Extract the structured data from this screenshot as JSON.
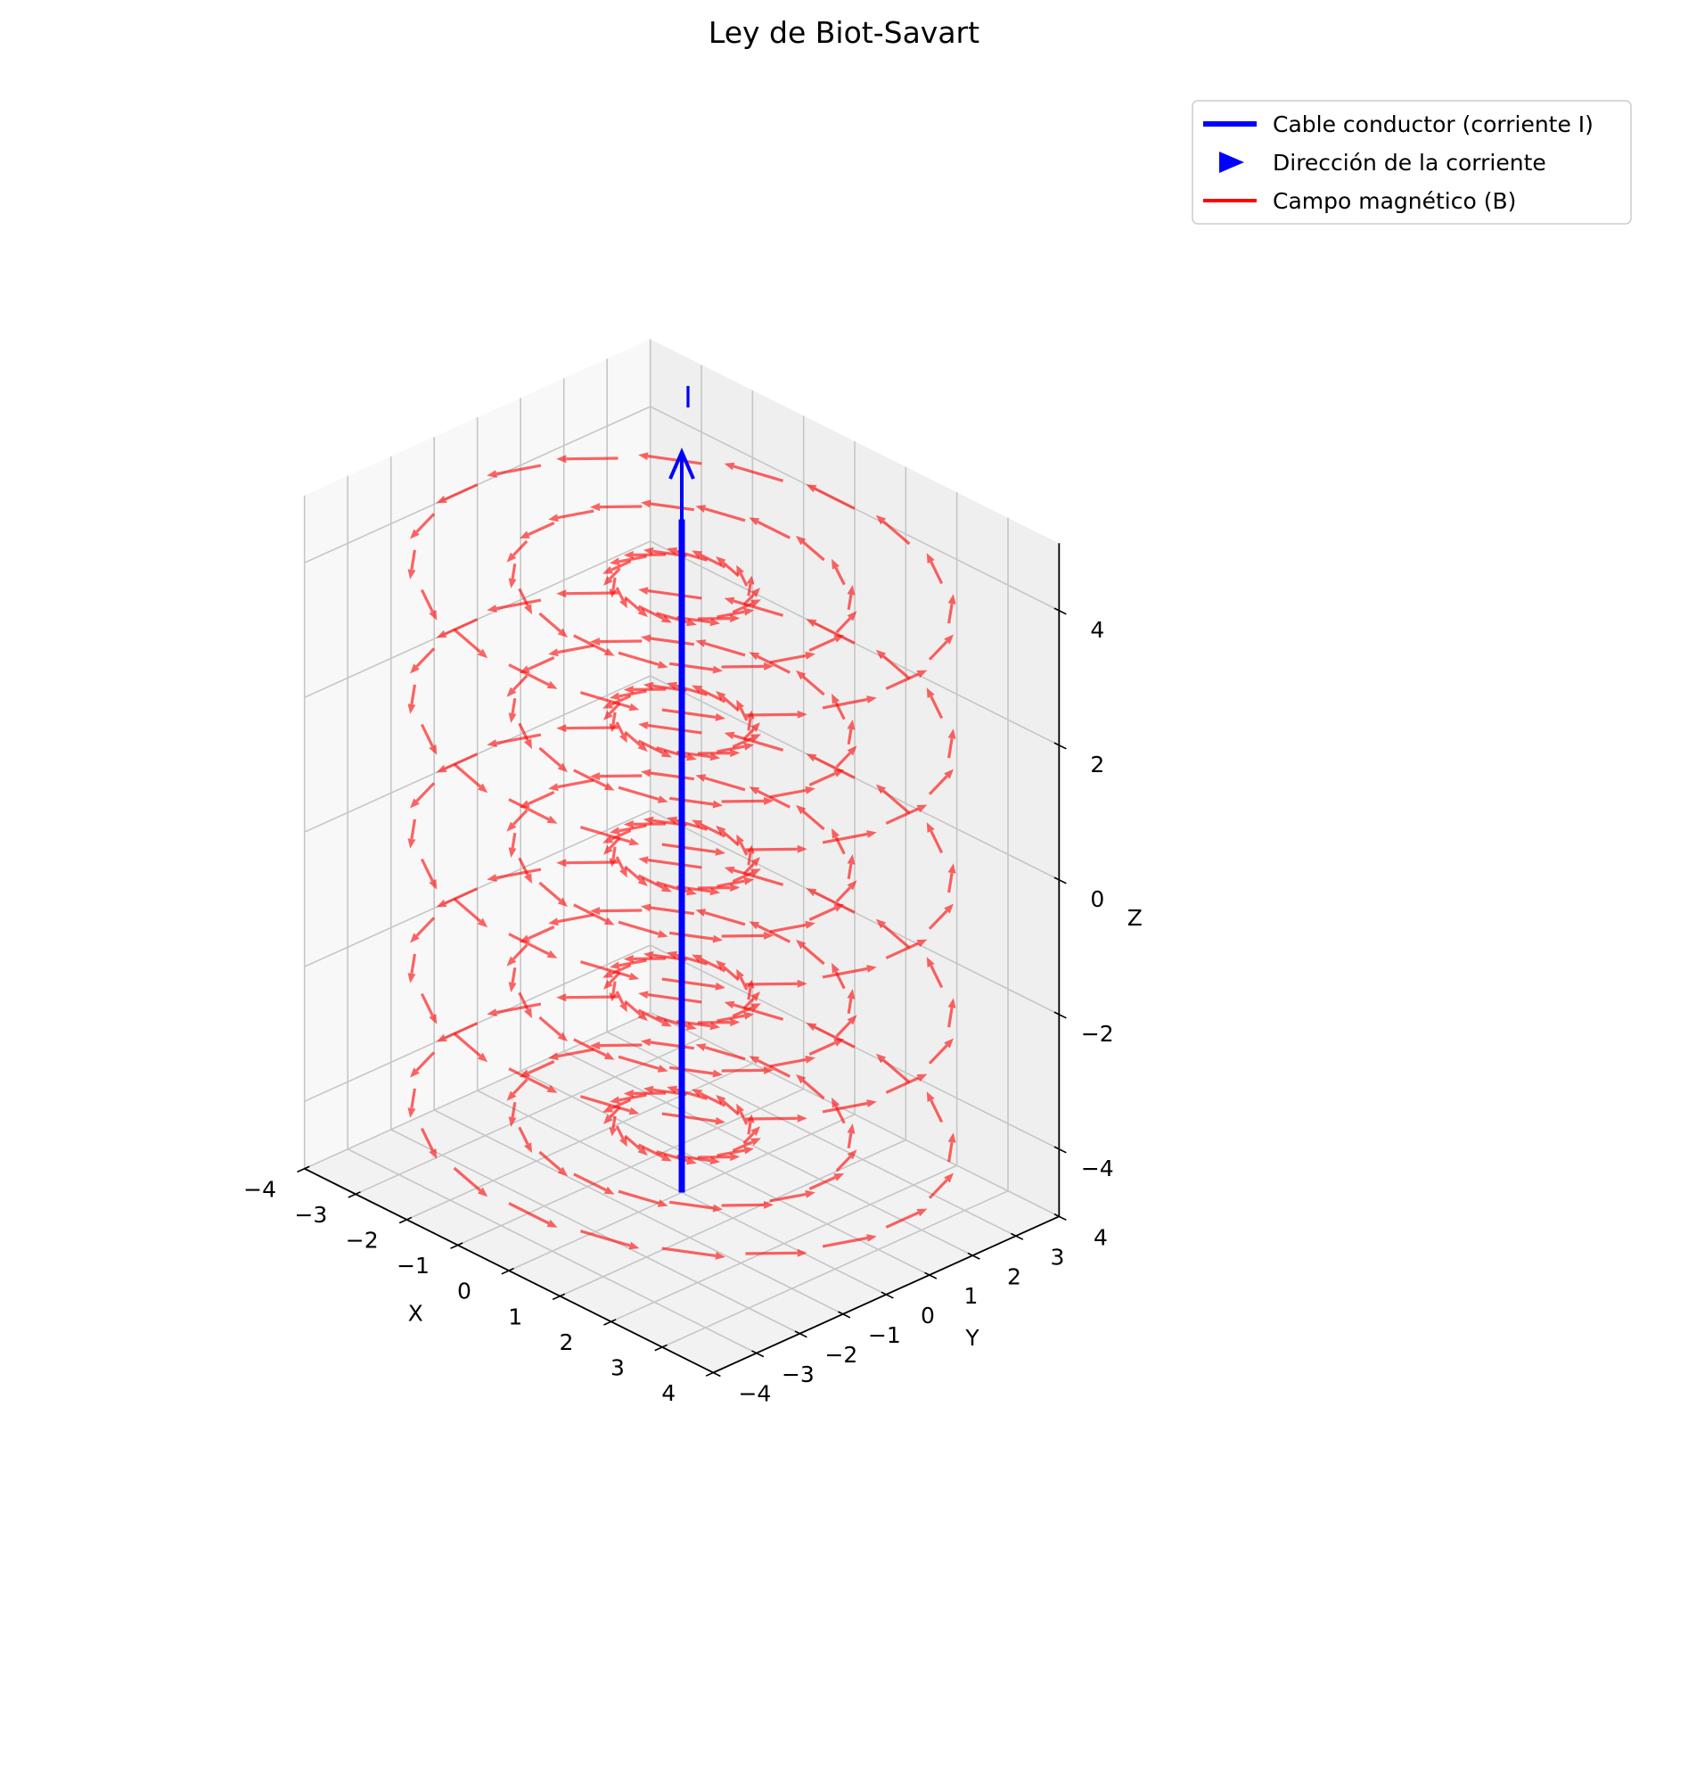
{
  "chart_data": {
    "type": "3d-quiver",
    "title": "Ley de Biot-Savart",
    "xlabel": "X",
    "ylabel": "Y",
    "zlabel": "Z",
    "xlim": [
      -4,
      4
    ],
    "ylim": [
      -4,
      4
    ],
    "zlim": [
      -5,
      5
    ],
    "xticks": [
      -4,
      -3,
      -2,
      -1,
      0,
      1,
      2,
      3,
      4
    ],
    "yticks": [
      -4,
      -3,
      -2,
      -1,
      0,
      1,
      2,
      3,
      4
    ],
    "zticks": [
      -4,
      -2,
      0,
      2,
      4
    ],
    "xtick_labels": [
      "−4",
      "−3",
      "−2",
      "−1",
      "0",
      "1",
      "2",
      "3",
      "4"
    ],
    "ytick_labels": [
      "−4",
      "−3",
      "−2",
      "−1",
      "0",
      "1",
      "2",
      "3",
      "4"
    ],
    "ztick_labels": [
      "−4",
      "−2",
      "0",
      "2",
      "4"
    ],
    "grid": true,
    "legend": {
      "position": "top-right",
      "entries": [
        {
          "label": "Cable conductor (corriente I)",
          "marker": "line",
          "color": "#0000ff"
        },
        {
          "label": "Dirección de la corriente",
          "marker": "triangle-right",
          "color": "#0000ff"
        },
        {
          "label": "Campo magnético (B)",
          "marker": "line",
          "color": "#ff0000"
        }
      ]
    },
    "wire": {
      "x": 0,
      "y": 0,
      "z_range": [
        -5,
        5
      ],
      "color": "#0000ff"
    },
    "current_arrow": {
      "z_from": 5,
      "z_to": 6,
      "label": "I",
      "color": "#0000ff"
    },
    "field": {
      "color": "#ff0000",
      "opacity": 0.6,
      "radii": [
        1,
        2.5,
        4
      ],
      "z_levels": [
        -4,
        -2,
        0,
        2,
        4
      ],
      "arrows_per_ring": 20
    }
  }
}
